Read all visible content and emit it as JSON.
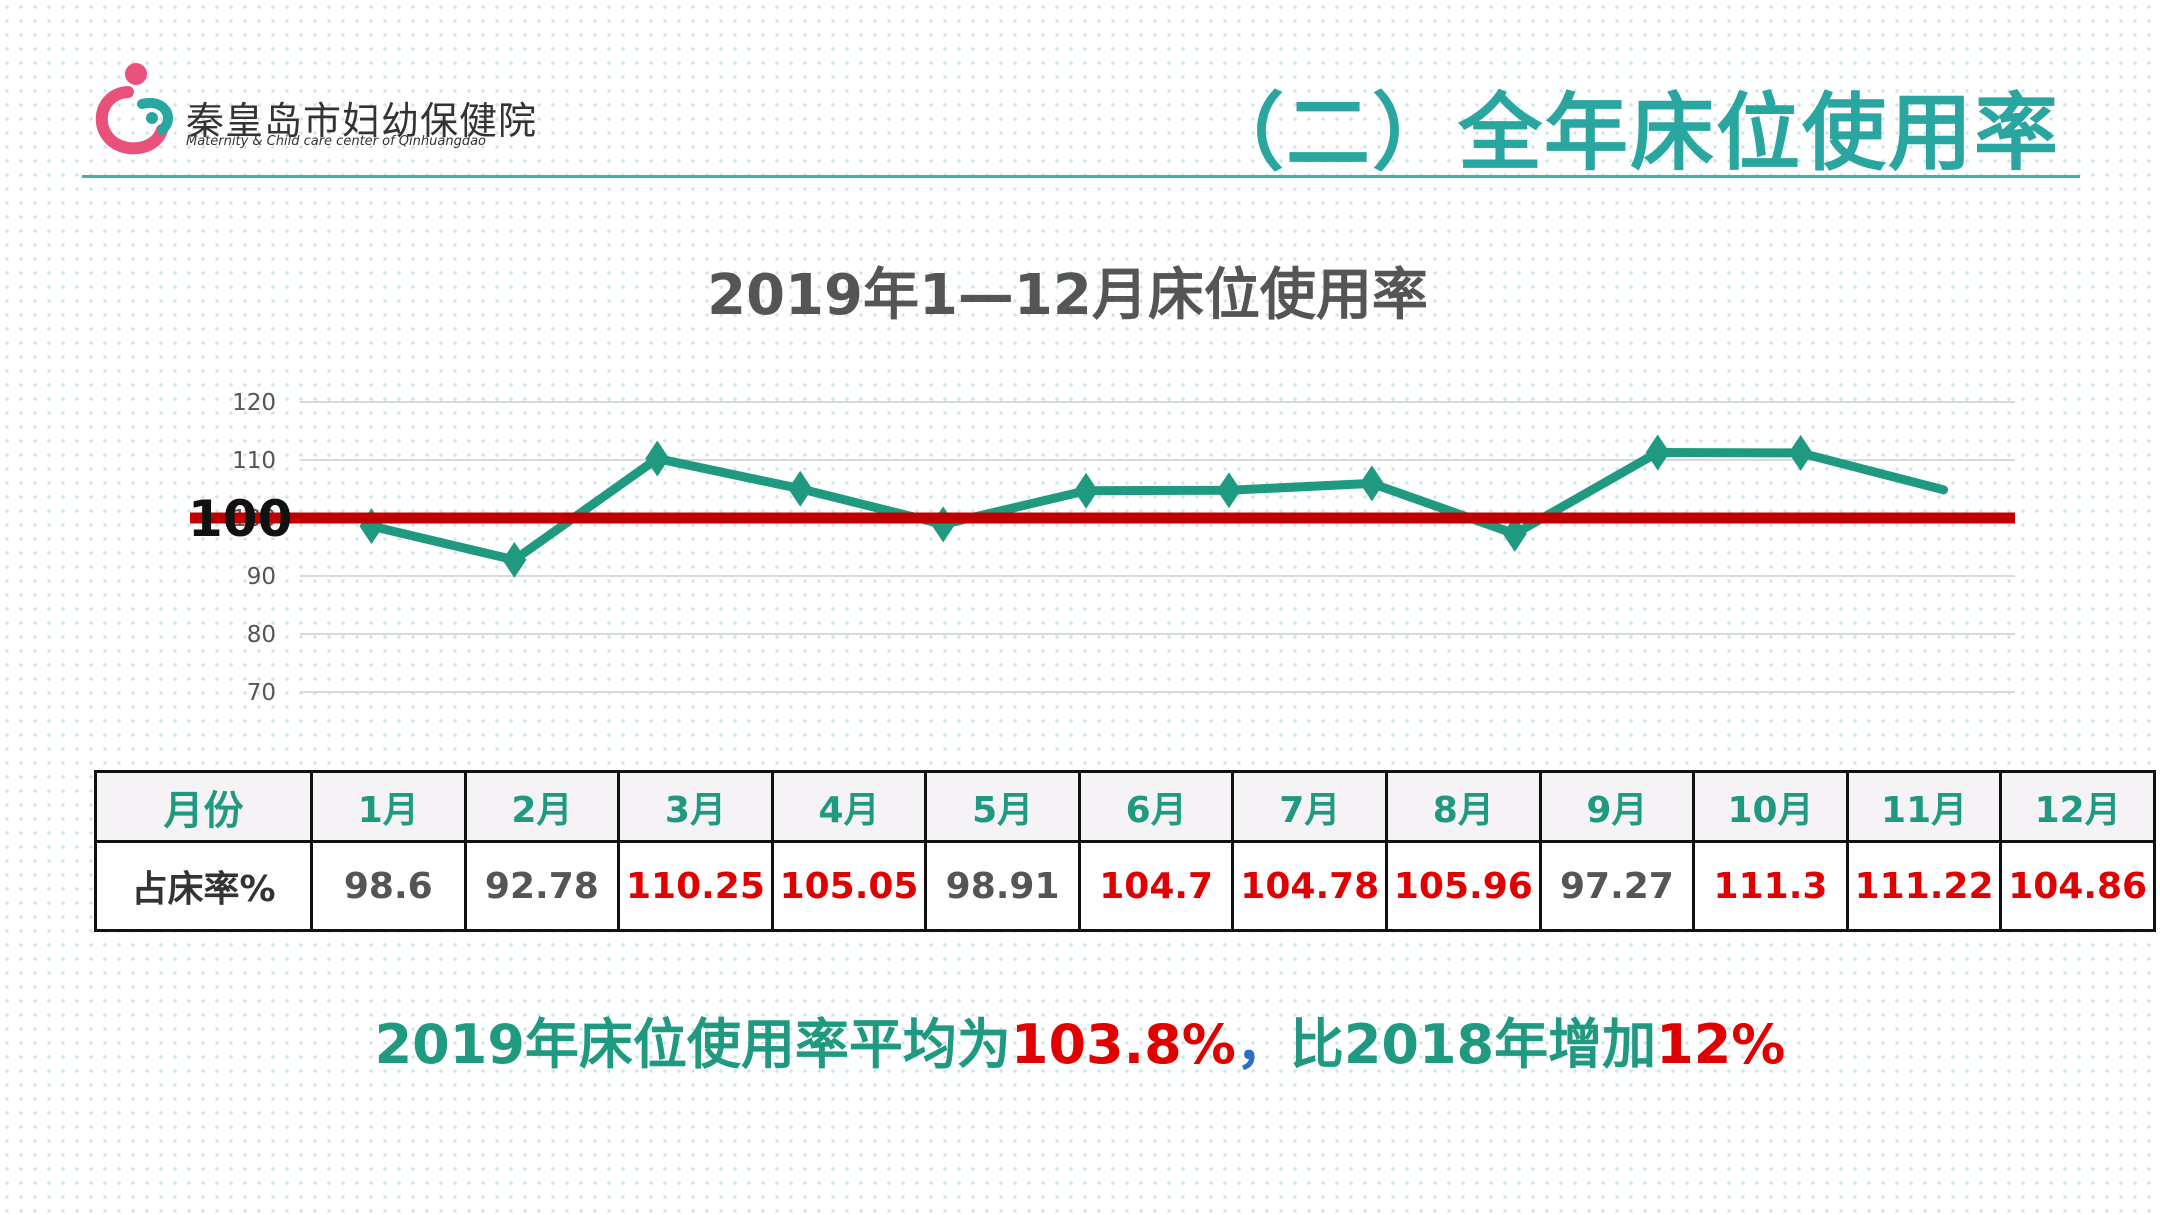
{
  "logo": {
    "org_name_cn": "秦皇岛市妇幼保健院",
    "org_name_en": "Maternity & Child care center of Qinhuangdao"
  },
  "header": {
    "title": "（二）全年床位使用率"
  },
  "colors": {
    "accent": "#2aa6a0",
    "series": "#1f9a80",
    "reference_line": "#c00000",
    "highlight": "#e00000"
  },
  "chart_data": {
    "type": "line",
    "title": "2019年1—12月床位使用率",
    "categories": [
      "1月",
      "2月",
      "3月",
      "4月",
      "5月",
      "6月",
      "7月",
      "8月",
      "9月",
      "10月",
      "11月",
      "12月"
    ],
    "values": [
      98.6,
      92.78,
      110.25,
      105.05,
      98.91,
      104.7,
      104.78,
      105.96,
      97.27,
      111.3,
      111.22,
      104.86
    ],
    "ylim": [
      70,
      120
    ],
    "yticks": [
      70,
      80,
      90,
      100,
      110,
      120
    ],
    "grid": true,
    "reference_line": {
      "value": 100,
      "label": "100"
    },
    "marker": "diamond",
    "xlabel": "",
    "ylabel": ""
  },
  "table": {
    "header_label": "月份",
    "row_label": "占床率%",
    "months": [
      "1月",
      "2月",
      "3月",
      "4月",
      "5月",
      "6月",
      "7月",
      "8月",
      "9月",
      "10月",
      "11月",
      "12月"
    ],
    "values": [
      "98.6",
      "92.78",
      "110.25",
      "105.05",
      "98.91",
      "104.7",
      "104.78",
      "105.96",
      "97.27",
      "111.3",
      "111.22",
      "104.86"
    ]
  },
  "summary": {
    "part1": "2019年床位使用率平均为",
    "avg": "103.8%",
    "comma": "，",
    "part2": "比2018年增加",
    "increase": "12%"
  }
}
